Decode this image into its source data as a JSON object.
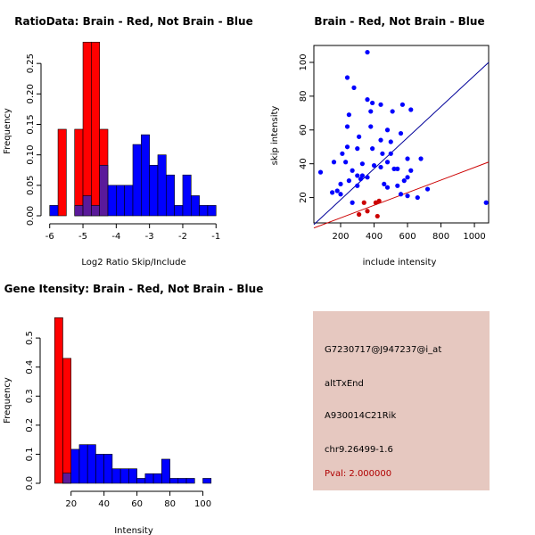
{
  "colors": {
    "brain": "#ff0000",
    "not_brain": "#0000ff",
    "overlap": "#5a1a9a",
    "pval": "#b00000",
    "panel_bg": "#e6c8c0",
    "fit_brain": "#cc0000",
    "fit_not_brain": "#000099"
  },
  "chart_data": [
    {
      "type": "bar",
      "title": "RatioData: Brain - Red, Not Brain - Blue",
      "xlabel": "Log2 Ratio Skip/Include",
      "ylabel": "Frequency",
      "xlim": [
        -6.1,
        -0.9
      ],
      "ylim": [
        0,
        0.3
      ],
      "xticks": [
        -6,
        -5,
        -4,
        -3,
        -2,
        -1
      ],
      "yticks": [
        0.0,
        0.05,
        0.1,
        0.15,
        0.2,
        0.25
      ],
      "ytick_labels": [
        "0.00",
        "0.05",
        "0.10",
        "0.15",
        "0.20",
        "0.25"
      ],
      "series": [
        {
          "name": "Brain",
          "color": "#ff0000",
          "bins": [
            [
              -5.75,
              -5.5,
              0.142
            ],
            [
              -5.25,
              -5.0,
              0.142
            ],
            [
              -5.0,
              -4.75,
              0.285
            ],
            [
              -4.75,
              -4.5,
              0.285
            ],
            [
              -4.5,
              -4.25,
              0.142
            ]
          ]
        },
        {
          "name": "Not Brain",
          "color": "#0000ff",
          "bins": [
            [
              -6.0,
              -5.75,
              0.017
            ],
            [
              -5.25,
              -5.0,
              0.017
            ],
            [
              -5.0,
              -4.75,
              0.033
            ],
            [
              -4.75,
              -4.5,
              0.017
            ],
            [
              -4.5,
              -4.25,
              0.083
            ],
            [
              -4.25,
              -4.0,
              0.05
            ],
            [
              -4.0,
              -3.75,
              0.05
            ],
            [
              -3.75,
              -3.5,
              0.05
            ],
            [
              -3.5,
              -3.25,
              0.117
            ],
            [
              -3.25,
              -3.0,
              0.133
            ],
            [
              -3.0,
              -2.75,
              0.083
            ],
            [
              -2.75,
              -2.5,
              0.1
            ],
            [
              -2.5,
              -2.25,
              0.067
            ],
            [
              -2.25,
              -2.0,
              0.017
            ],
            [
              -2.0,
              -1.75,
              0.067
            ],
            [
              -1.75,
              -1.5,
              0.033
            ],
            [
              -1.5,
              -1.25,
              0.017
            ],
            [
              -1.25,
              -1.0,
              0.017
            ]
          ]
        }
      ]
    },
    {
      "type": "scatter",
      "title": "Brain - Red, Not Brain - Blue",
      "xlabel": "include intensity",
      "ylabel": "skip intensity",
      "xlim": [
        40,
        1085
      ],
      "ylim": [
        5,
        110
      ],
      "xticks": [
        200,
        400,
        600,
        800,
        1000
      ],
      "yticks": [
        20,
        40,
        60,
        80,
        100
      ],
      "series": [
        {
          "name": "Not Brain",
          "color": "#0000ff",
          "points": [
            [
              360,
              106
            ],
            [
              240,
              91
            ],
            [
              280,
              85
            ],
            [
              360,
              78
            ],
            [
              440,
              75
            ],
            [
              390,
              76
            ],
            [
              380,
              71
            ],
            [
              570,
              75
            ],
            [
              250,
              69
            ],
            [
              510,
              71
            ],
            [
              620,
              72
            ],
            [
              240,
              62
            ],
            [
              380,
              62
            ],
            [
              310,
              56
            ],
            [
              440,
              54
            ],
            [
              500,
              53
            ],
            [
              480,
              60
            ],
            [
              560,
              58
            ],
            [
              240,
              50
            ],
            [
              300,
              49
            ],
            [
              390,
              49
            ],
            [
              210,
              46
            ],
            [
              450,
              46
            ],
            [
              500,
              46
            ],
            [
              600,
              43
            ],
            [
              680,
              43
            ],
            [
              160,
              41
            ],
            [
              230,
              41
            ],
            [
              330,
              40
            ],
            [
              480,
              41
            ],
            [
              400,
              39
            ],
            [
              440,
              38
            ],
            [
              520,
              37
            ],
            [
              540,
              37
            ],
            [
              270,
              36
            ],
            [
              620,
              36
            ],
            [
              300,
              33
            ],
            [
              330,
              33
            ],
            [
              360,
              32
            ],
            [
              600,
              32
            ],
            [
              580,
              30
            ],
            [
              250,
              30
            ],
            [
              320,
              31
            ],
            [
              80,
              35
            ],
            [
              200,
              28
            ],
            [
              460,
              28
            ],
            [
              540,
              27
            ],
            [
              480,
              26
            ],
            [
              300,
              27
            ],
            [
              180,
              24
            ],
            [
              150,
              23
            ],
            [
              200,
              22
            ],
            [
              560,
              22
            ],
            [
              600,
              21
            ],
            [
              660,
              20
            ],
            [
              720,
              25
            ],
            [
              270,
              17
            ],
            [
              1070,
              17
            ]
          ]
        },
        {
          "name": "Brain",
          "color": "#cc0000",
          "points": [
            [
              310,
              10
            ],
            [
              360,
              12
            ],
            [
              340,
              17
            ],
            [
              410,
              17
            ],
            [
              430,
              18
            ],
            [
              420,
              9
            ]
          ]
        }
      ],
      "fit_lines": [
        {
          "name": "Not Brain fit",
          "from": [
            40,
            4
          ],
          "to": [
            1085,
            100
          ]
        },
        {
          "name": "Brain fit",
          "from": [
            40,
            2
          ],
          "to": [
            1085,
            41
          ]
        }
      ]
    },
    {
      "type": "bar",
      "title": "Gene Itensity: Brain - Red, Not Brain - Blue",
      "xlabel": "Intensity",
      "ylabel": "Frequency",
      "xlim": [
        5,
        110
      ],
      "ylim": [
        0,
        0.62
      ],
      "xticks": [
        20,
        40,
        60,
        80,
        100
      ],
      "yticks": [
        0.0,
        0.1,
        0.2,
        0.3,
        0.4,
        0.5
      ],
      "ytick_labels": [
        "0.0",
        "0.1",
        "0.2",
        "0.3",
        "0.4",
        "0.5"
      ],
      "series": [
        {
          "name": "Brain",
          "color": "#ff0000",
          "bins": [
            [
              10,
              15,
              0.57
            ],
            [
              15,
              20,
              0.43
            ]
          ]
        },
        {
          "name": "Not Brain",
          "color": "#0000ff",
          "bins": [
            [
              15,
              20,
              0.035
            ],
            [
              20,
              25,
              0.117
            ],
            [
              25,
              30,
              0.133
            ],
            [
              30,
              35,
              0.133
            ],
            [
              35,
              40,
              0.1
            ],
            [
              40,
              45,
              0.1
            ],
            [
              45,
              50,
              0.05
            ],
            [
              50,
              55,
              0.05
            ],
            [
              55,
              60,
              0.05
            ],
            [
              60,
              65,
              0.017
            ],
            [
              65,
              70,
              0.033
            ],
            [
              70,
              75,
              0.033
            ],
            [
              75,
              80,
              0.083
            ],
            [
              80,
              85,
              0.017
            ],
            [
              85,
              90,
              0.017
            ],
            [
              90,
              95,
              0.017
            ],
            [
              100,
              105,
              0.017
            ]
          ]
        }
      ]
    }
  ],
  "info_panel": {
    "probe_id": "G7230717@J947237@i_at",
    "event_type": "altTxEnd",
    "gene": "A930014C21Rik",
    "location": "chr9.26499-1.6",
    "pval": "Pval: 2.000000"
  }
}
